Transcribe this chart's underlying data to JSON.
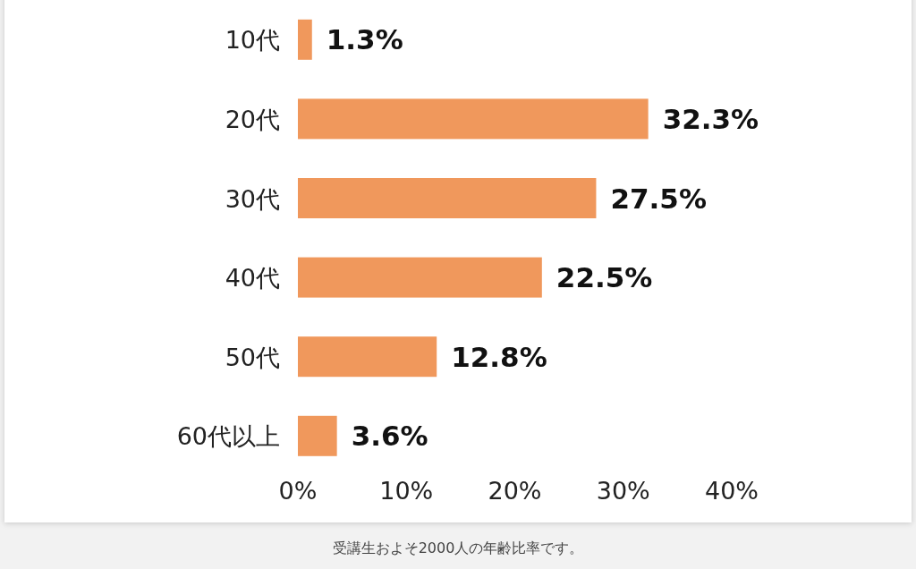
{
  "chart_data": {
    "type": "bar",
    "orientation": "horizontal",
    "categories": [
      "10代",
      "20代",
      "30代",
      "40代",
      "50代",
      "60代以上"
    ],
    "values": [
      1.3,
      32.3,
      27.5,
      22.5,
      12.8,
      3.6
    ],
    "value_labels": [
      "1.3%",
      "32.3%",
      "27.5%",
      "22.5%",
      "12.8%",
      "3.6%"
    ],
    "color": "#f0985c",
    "xlim": [
      0,
      40
    ],
    "xticks": [
      {
        "value": 0,
        "label": "0%"
      },
      {
        "value": 10,
        "label": "10%"
      },
      {
        "value": 20,
        "label": "20%"
      },
      {
        "value": 30,
        "label": "30%"
      },
      {
        "value": 40,
        "label": "40%"
      }
    ],
    "grid": false,
    "annotations": [
      "受講生およそ2000人の年齢比率です。"
    ]
  }
}
